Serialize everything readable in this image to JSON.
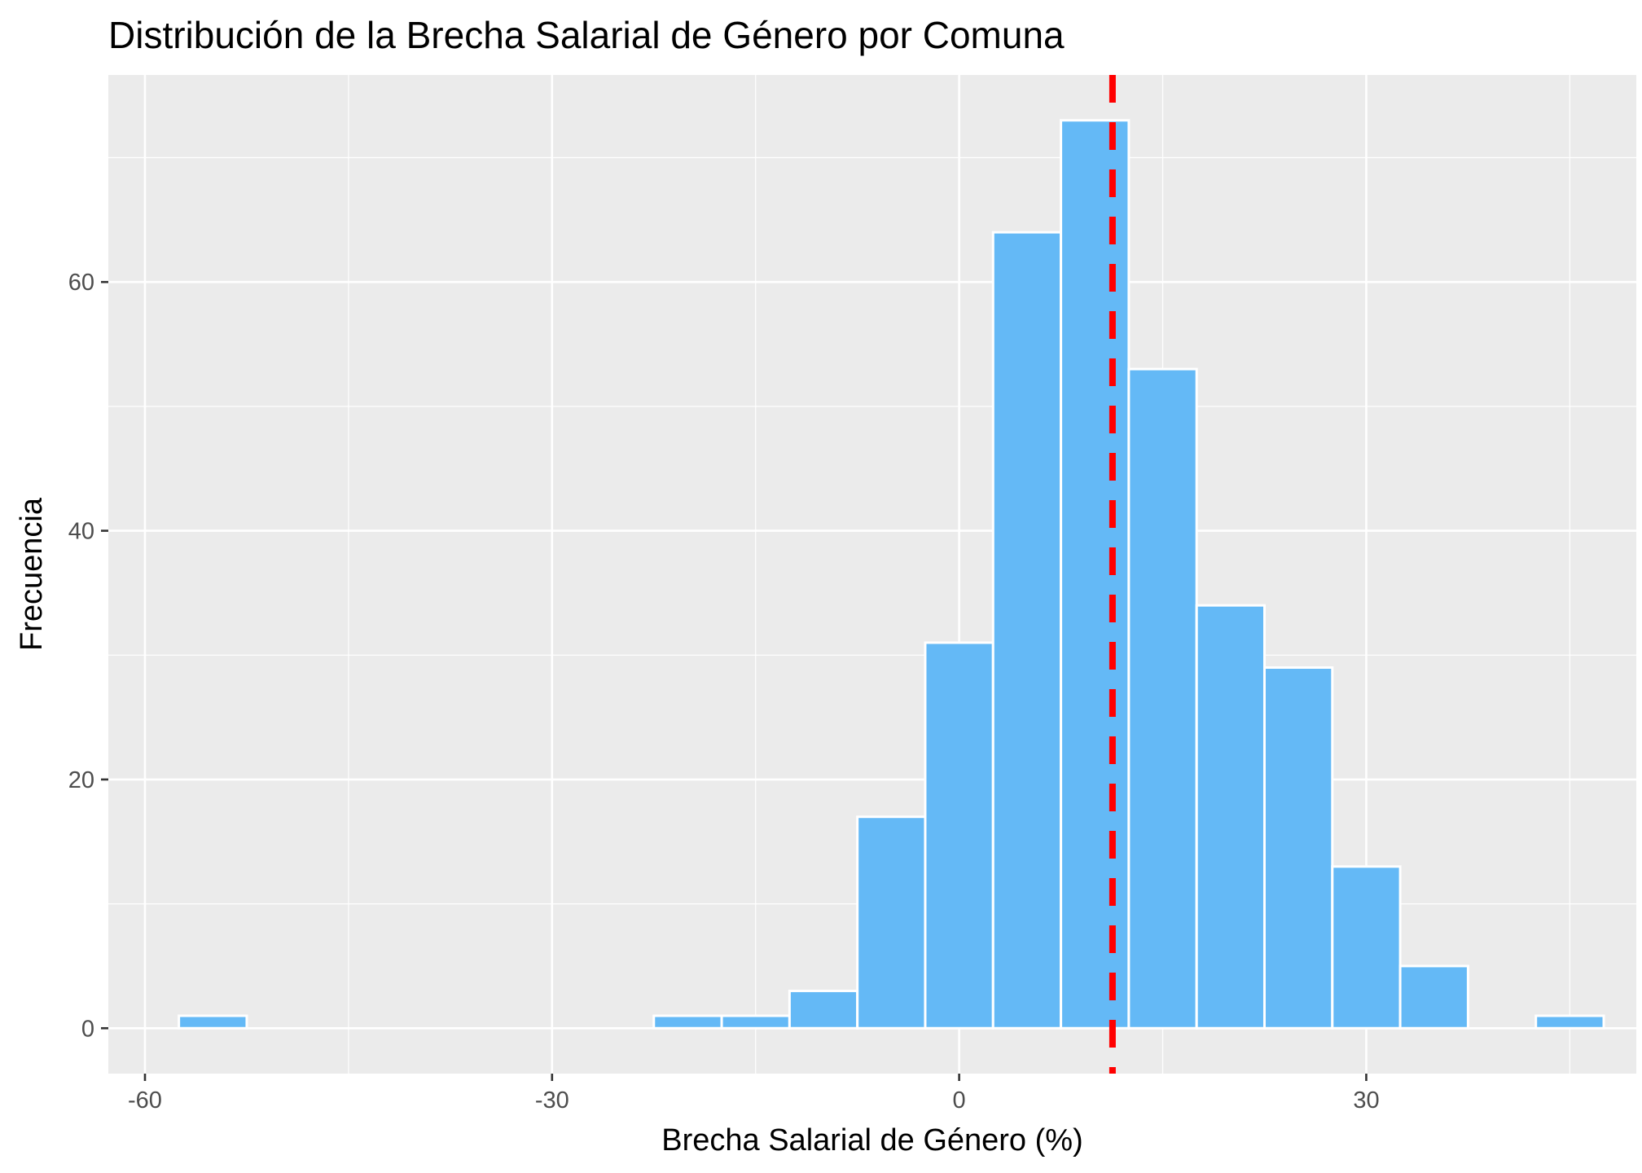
{
  "chart_data": {
    "type": "bar",
    "title": "Distribución de la Brecha Salarial de Género por Comuna",
    "xlabel": "Brecha Salarial de Género (%)",
    "ylabel": "Frecuencia",
    "xlim": [
      -62.7,
      49.9
    ],
    "ylim": [
      -3.65,
      76.65
    ],
    "xticks": [
      -60,
      -30,
      0,
      30
    ],
    "xtick_labels": [
      "-60",
      "-30",
      "0",
      "30"
    ],
    "yticks": [
      0,
      20,
      40,
      60
    ],
    "ytick_labels": [
      "0",
      "20",
      "40",
      "60"
    ],
    "grid": true,
    "bin_width": 5,
    "bins": [
      {
        "start": -57.5,
        "end": -52.5,
        "count": 1
      },
      {
        "start": -22.5,
        "end": -17.5,
        "count": 1
      },
      {
        "start": -17.5,
        "end": -12.5,
        "count": 1
      },
      {
        "start": -12.5,
        "end": -7.5,
        "count": 3
      },
      {
        "start": -7.5,
        "end": -2.5,
        "count": 17
      },
      {
        "start": -2.5,
        "end": 2.5,
        "count": 31
      },
      {
        "start": 2.5,
        "end": 7.5,
        "count": 64
      },
      {
        "start": 7.5,
        "end": 12.5,
        "count": 73
      },
      {
        "start": 12.5,
        "end": 17.5,
        "count": 53
      },
      {
        "start": 17.5,
        "end": 22.5,
        "count": 34
      },
      {
        "start": 22.5,
        "end": 27.5,
        "count": 29
      },
      {
        "start": 27.5,
        "end": 32.5,
        "count": 13
      },
      {
        "start": 32.5,
        "end": 37.5,
        "count": 5
      },
      {
        "start": 42.5,
        "end": 47.5,
        "count": 1
      }
    ],
    "reference_line": {
      "x": 11.3,
      "style": "dashed"
    },
    "colors": {
      "bar_fill": "#64b9f6",
      "bar_outline": "#ffffff",
      "panel_background": "#ebebeb",
      "grid": "#ffffff",
      "reference_line": "#ff0000"
    }
  }
}
